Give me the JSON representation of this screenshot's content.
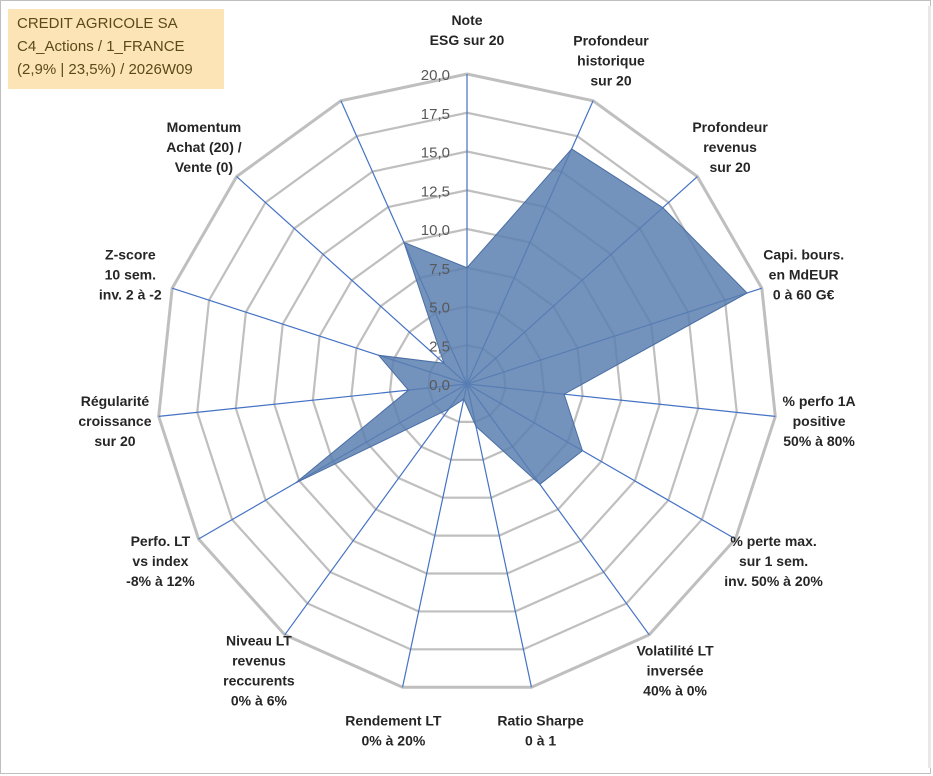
{
  "info_box": {
    "line1": "CREDIT AGRICOLE SA",
    "line2": "C4_Actions / 1_FRANCE",
    "line3": "(2,9% | 23,5%) / 2026W09"
  },
  "colors": {
    "fill": "#5b7fb0",
    "spoke": "#4472c4",
    "grid": "#bfbfbf",
    "info_bg": "#fce4b6"
  },
  "chart_data": {
    "type": "radar",
    "rmax": 20,
    "ticks": [
      "0,0",
      "2,5",
      "5,0",
      "7,5",
      "10,0",
      "12,5",
      "15,0",
      "17,5",
      "20,0"
    ],
    "tick_values": [
      0,
      2.5,
      5,
      7.5,
      10,
      12.5,
      15,
      17.5,
      20
    ],
    "grid": true,
    "axes": [
      {
        "label": [
          "Note",
          "ESG sur 20"
        ],
        "value": 7.5
      },
      {
        "label": [
          "Profondeur",
          "historique",
          "sur 20"
        ],
        "value": 16.6
      },
      {
        "label": [
          "Profondeur",
          "revenus",
          "sur 20"
        ],
        "value": 17.0
      },
      {
        "label": [
          "Capi. bours.",
          "en MdEUR",
          "0 à 60 G€"
        ],
        "value": 19.0
      },
      {
        "label": [
          "% perfo 1A",
          "positive",
          "50% à 80%"
        ],
        "value": 6.3
      },
      {
        "label": [
          "% perte max.",
          "sur 1 sem.",
          "inv. 50% à 20%"
        ],
        "value": 8.6
      },
      {
        "label": [
          "Volatilité LT",
          "inversée",
          "40% à 0%"
        ],
        "value": 8.0
      },
      {
        "label": [
          "Ratio Sharpe",
          "0 à 1"
        ],
        "value": 2.8
      },
      {
        "label": [
          "Rendement LT",
          "0% à 20%"
        ],
        "value": 1.0
      },
      {
        "label": [
          "Niveau LT",
          "revenus",
          "reccurents",
          "0% à 6%"
        ],
        "value": 2.0
      },
      {
        "label": [
          "Perfo. LT",
          "vs index",
          "-8% à 12%"
        ],
        "value": 12.8
      },
      {
        "label": [
          "Régularité",
          "croissance",
          "sur 20"
        ],
        "value": 3.8
      },
      {
        "label": [
          "Z-score",
          "10 sem.",
          "inv. 2 à -2"
        ],
        "value": 6.0
      },
      {
        "label": [
          "Momentum",
          "Achat (20) /",
          "Vente (0)"
        ],
        "value": 2.0
      },
      {
        "label": [],
        "value": 10.0
      }
    ]
  }
}
